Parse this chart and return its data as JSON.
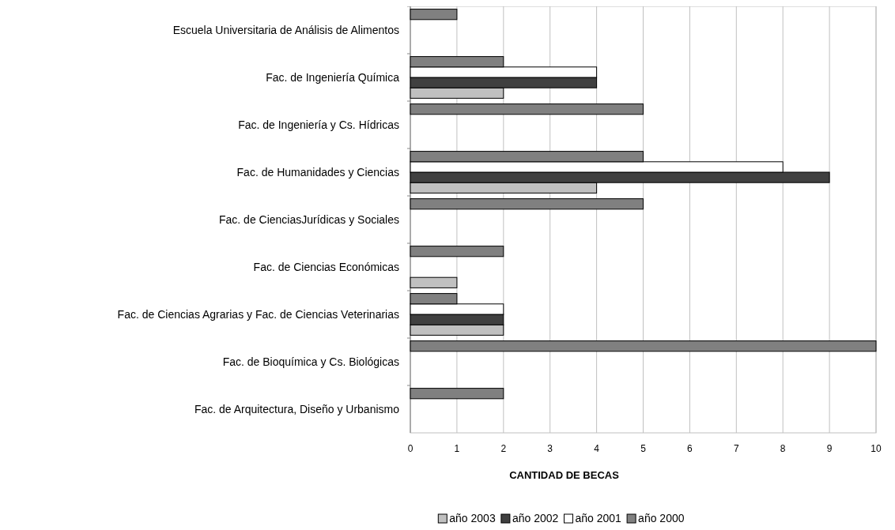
{
  "chart_data": {
    "type": "bar",
    "orientation": "horizontal",
    "xlabel": "CANTIDAD DE BECAS",
    "categories": [
      "Escuela Universitaria de Análisis de Alimentos",
      "Fac. de Ingeniería Química",
      "Fac. de Ingeniería y Cs. Hídricas",
      "Fac. de Humanidades y Ciencias",
      "Fac. de CienciasJurídicas y Sociales",
      "Fac. de Ciencias Económicas",
      "Fac. de Ciencias Agrarias y Fac. de Ciencias Veterinarias",
      "Fac. de Bioquímica y Cs. Biológicas",
      "Fac. de Arquitectura, Diseño y Urbanismo"
    ],
    "series": [
      {
        "name": "año 2003",
        "color": "#c0c0c0",
        "values": [
          null,
          2,
          null,
          4,
          null,
          1,
          2,
          null,
          null
        ]
      },
      {
        "name": "año 2002",
        "color": "#404040",
        "values": [
          null,
          4,
          null,
          9,
          null,
          null,
          2,
          null,
          null
        ]
      },
      {
        "name": "año 2001",
        "color": "#ffffff",
        "values": [
          null,
          4,
          null,
          8,
          null,
          null,
          2,
          null,
          null
        ]
      },
      {
        "name": "año 2000",
        "color": "#808080",
        "values": [
          1,
          2,
          5,
          5,
          5,
          2,
          1,
          10,
          2
        ]
      }
    ],
    "xlim": [
      0,
      10
    ],
    "xticks": [
      0,
      1,
      2,
      3,
      4,
      5,
      6,
      7,
      8,
      9,
      10
    ],
    "grid": "x",
    "legend": "bottom"
  }
}
